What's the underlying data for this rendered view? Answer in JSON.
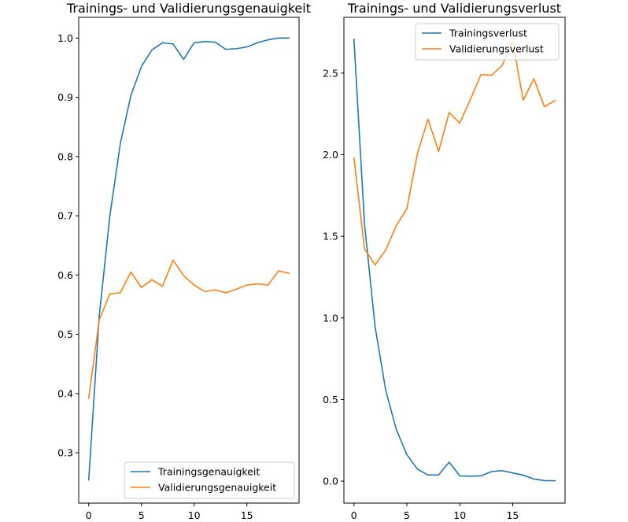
{
  "chart_data": [
    {
      "type": "line",
      "title": "Trainings- und Validierungsgenauigkeit",
      "xlabel": "",
      "ylabel": "",
      "xlim": [
        -0.95,
        19.95
      ],
      "ylim": [
        0.215,
        1.035
      ],
      "xticks": [
        0,
        5,
        10,
        15
      ],
      "xtick_labels": [
        "0",
        "5",
        "10",
        "15"
      ],
      "yticks": [
        0.3,
        0.4,
        0.5,
        0.6,
        0.7,
        0.8,
        0.9,
        1.0
      ],
      "ytick_labels": [
        "0.3",
        "0.4",
        "0.5",
        "0.6",
        "0.7",
        "0.8",
        "0.9",
        "1.0"
      ],
      "grid": false,
      "legend_position": "lower-right",
      "x": [
        0,
        1,
        2,
        3,
        4,
        5,
        6,
        7,
        8,
        9,
        10,
        11,
        12,
        13,
        14,
        15,
        16,
        17,
        18,
        19
      ],
      "series": [
        {
          "name": "Trainingsgenauigkeit",
          "color": "#1f77b4",
          "values": [
            0.254,
            0.531,
            0.699,
            0.822,
            0.903,
            0.952,
            0.98,
            0.992,
            0.99,
            0.964,
            0.992,
            0.994,
            0.993,
            0.981,
            0.982,
            0.985,
            0.992,
            0.997,
            1.0,
            1.0
          ]
        },
        {
          "name": "Validierungsgenauigkeit",
          "color": "#ff7f0e",
          "values": [
            0.392,
            0.524,
            0.568,
            0.57,
            0.605,
            0.579,
            0.592,
            0.581,
            0.625,
            0.599,
            0.583,
            0.572,
            0.575,
            0.57,
            0.576,
            0.583,
            0.585,
            0.583,
            0.607,
            0.603
          ]
        }
      ]
    },
    {
      "type": "line",
      "title": "Trainings- und Validierungsverlust",
      "xlabel": "",
      "ylabel": "",
      "xlim": [
        -0.95,
        19.95
      ],
      "ylim": [
        -0.135,
        2.842
      ],
      "xticks": [
        0,
        5,
        10,
        15
      ],
      "xtick_labels": [
        "0",
        "5",
        "10",
        "15"
      ],
      "yticks": [
        0.0,
        0.5,
        1.0,
        1.5,
        2.0,
        2.5
      ],
      "ytick_labels": [
        "0.0",
        "0.5",
        "1.0",
        "1.5",
        "2.0",
        "2.5"
      ],
      "grid": false,
      "legend_position": "upper-right",
      "x": [
        0,
        1,
        2,
        3,
        4,
        5,
        6,
        7,
        8,
        9,
        10,
        11,
        12,
        13,
        14,
        15,
        16,
        17,
        18,
        19
      ],
      "series": [
        {
          "name": "Trainingsverlust",
          "color": "#1f77b4",
          "values": [
            2.707,
            1.573,
            0.945,
            0.557,
            0.317,
            0.162,
            0.073,
            0.037,
            0.038,
            0.116,
            0.032,
            0.03,
            0.032,
            0.058,
            0.064,
            0.05,
            0.036,
            0.013,
            0.003,
            0.002
          ]
        },
        {
          "name": "Validierungsverlust",
          "color": "#ff7f0e",
          "values": [
            1.981,
            1.422,
            1.325,
            1.416,
            1.566,
            1.669,
            2.008,
            2.217,
            2.02,
            2.259,
            2.194,
            2.337,
            2.491,
            2.487,
            2.546,
            2.693,
            2.334,
            2.466,
            2.294,
            2.332
          ]
        }
      ]
    }
  ]
}
